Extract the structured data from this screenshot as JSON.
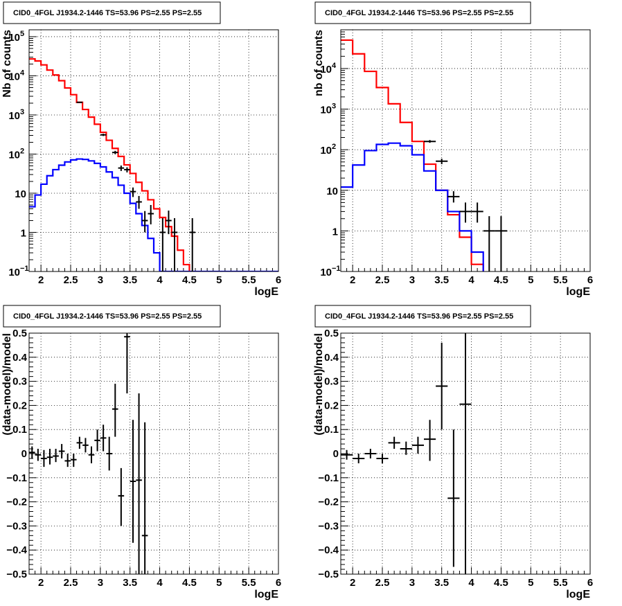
{
  "chart_data": [
    {
      "type": "line",
      "title": "CID0_4FGL J1934.2-1446 TS=53.96 PS=2.55 PS=2.55",
      "xlabel": "logE",
      "ylabel": "Nb of counts",
      "xlim": [
        1.8,
        6.0
      ],
      "ylim": [
        0.1,
        150000
      ],
      "yscale": "log",
      "grid": true,
      "x_ticks": [
        {
          "v": 2,
          "label": "2"
        },
        {
          "v": 2.5,
          "label": "2.5"
        },
        {
          "v": 3,
          "label": "3"
        },
        {
          "v": 3.5,
          "label": "3.5"
        },
        {
          "v": 4,
          "label": "4"
        },
        {
          "v": 4.5,
          "label": "4.5"
        },
        {
          "v": 5,
          "label": "5"
        },
        {
          "v": 5.5,
          "label": "5.5"
        },
        {
          "v": 6,
          "label": "6"
        }
      ],
      "y_ticks": [
        {
          "v": 0.1,
          "base": "10",
          "exp": "−1"
        },
        {
          "v": 1,
          "base": "1",
          "exp": ""
        },
        {
          "v": 10,
          "base": "10",
          "exp": ""
        },
        {
          "v": 100,
          "base": "10",
          "exp": "2"
        },
        {
          "v": 1000,
          "base": "10",
          "exp": "3"
        },
        {
          "v": 10000,
          "base": "10",
          "exp": "4"
        },
        {
          "v": 100000,
          "base": "10",
          "exp": "5"
        }
      ],
      "series": [
        {
          "style": "hist",
          "color": "#ff0000",
          "bins": {
            "start": 1.8,
            "width": 0.1,
            "values": [
              27000,
              24000,
              19000,
              14000,
              10500,
              7500,
              4900,
              3300,
              2100,
              1380,
              880,
              580,
              360,
              225,
              140,
              87,
              53,
              32,
              19,
              11.5,
              6.8,
              4.0,
              2.4,
              1.4,
              0.8,
              0.35,
              0.15,
              0.05,
              0.05,
              0.05,
              0.05,
              0.05,
              0.05,
              0.05,
              0.05,
              0.05,
              0.05,
              0.05,
              0.05,
              0.05,
              0.05,
              0.05
            ]
          }
        },
        {
          "style": "hist",
          "color": "#0000ff",
          "bins": {
            "start": 1.8,
            "width": 0.1,
            "values": [
              4.5,
              9,
              17,
              28,
              40,
              52,
              63,
              71,
              75,
              73,
              67,
              58,
              47,
              35,
              25,
              16,
              10,
              5.5,
              3.0,
              1.5,
              0.7,
              0.3,
              0.1,
              0.1,
              0.1,
              0.1,
              0.1,
              0.1,
              0.1,
              0.1,
              0.1,
              0.1,
              0.1,
              0.1,
              0.1,
              0.1,
              0.1,
              0.1,
              0.1,
              0.1,
              0.1,
              0.1
            ]
          }
        },
        {
          "style": "errorbar",
          "color": "#000000",
          "halfwidth": 0.05,
          "points": [
            [
              2.65,
              2100,
              2050,
              2150
            ],
            [
              3.05,
              310,
              290,
              330
            ],
            [
              3.25,
              110,
              100,
              121
            ],
            [
              3.35,
              44,
              37,
              51
            ],
            [
              3.45,
              40,
              34,
              46
            ],
            [
              3.55,
              11,
              8,
              14
            ],
            [
              3.65,
              6,
              4,
              8.5
            ],
            [
              3.75,
              2,
              1,
              3.5
            ],
            [
              3.85,
              3,
              1.6,
              5
            ],
            [
              4.05,
              1,
              0.1,
              2.3
            ],
            [
              4.15,
              2,
              0.9,
              3.6
            ],
            [
              4.25,
              1,
              0.1,
              2.3
            ],
            [
              4.55,
              1,
              0.1,
              2.3
            ]
          ]
        }
      ]
    },
    {
      "type": "line",
      "title": "CID0_4FGL J1934.2-1446 TS=53.96 PS=2.55 PS=2.55",
      "xlabel": "logE",
      "ylabel": "nb of counts",
      "xlim": [
        1.8,
        6.0
      ],
      "ylim": [
        0.1,
        90000
      ],
      "yscale": "log",
      "grid": true,
      "x_ticks": [
        {
          "v": 2,
          "label": "2"
        },
        {
          "v": 2.5,
          "label": "2.5"
        },
        {
          "v": 3,
          "label": "3"
        },
        {
          "v": 3.5,
          "label": "3.5"
        },
        {
          "v": 4,
          "label": "4"
        },
        {
          "v": 4.5,
          "label": "4.5"
        },
        {
          "v": 5,
          "label": "5"
        },
        {
          "v": 5.5,
          "label": "5.5"
        },
        {
          "v": 6,
          "label": "6"
        }
      ],
      "y_ticks": [
        {
          "v": 0.1,
          "base": "10",
          "exp": "−1"
        },
        {
          "v": 1,
          "base": "1",
          "exp": ""
        },
        {
          "v": 10,
          "base": "10",
          "exp": ""
        },
        {
          "v": 100,
          "base": "10",
          "exp": "2"
        },
        {
          "v": 1000,
          "base": "10",
          "exp": "3"
        },
        {
          "v": 10000,
          "base": "10",
          "exp": "4"
        }
      ],
      "series": [
        {
          "style": "hist",
          "color": "#ff0000",
          "bins": {
            "start": 1.8,
            "width": 0.2,
            "values": [
              50000,
              23000,
              8500,
              3400,
              1350,
              470,
              160,
              44,
              10,
              2.5,
              0.7,
              0.15,
              0.05,
              0.05,
              0.05,
              0.05,
              0.05,
              0.05,
              0.05,
              0.05,
              0.05
            ]
          }
        },
        {
          "style": "hist",
          "color": "#0000ff",
          "bins": {
            "start": 1.8,
            "width": 0.2,
            "values": [
              12,
              42,
              95,
              135,
              145,
              125,
              75,
              30,
              10,
              3,
              1,
              0.3,
              0.05,
              0.05,
              0.05,
              0.05,
              0.05,
              0.05,
              0.05,
              0.05,
              0.05
            ]
          }
        },
        {
          "style": "errorbar",
          "color": "#000000",
          "halfwidth": 0.1,
          "points": [
            [
              3.3,
              160,
              148,
              173
            ],
            [
              3.5,
              52,
              44,
              60
            ],
            [
              3.7,
              7,
              5,
              9.5
            ],
            [
              3.9,
              3,
              1.6,
              5
            ],
            [
              4.1,
              3,
              1.6,
              5
            ],
            [
              4.3,
              1,
              0.1,
              2.3
            ],
            [
              4.5,
              1,
              0.1,
              2.3
            ]
          ]
        }
      ]
    },
    {
      "type": "scatter",
      "title": "CID0_4FGL J1934.2-1446 TS=53.96 PS=2.55 PS=2.55",
      "xlabel": "logE",
      "ylabel": "(data-model)/model",
      "xlim": [
        1.8,
        6.0
      ],
      "ylim": [
        -0.5,
        0.5
      ],
      "yscale": "linear",
      "grid": true,
      "x_ticks": [
        {
          "v": 2,
          "label": "2"
        },
        {
          "v": 2.5,
          "label": "2.5"
        },
        {
          "v": 3,
          "label": "3"
        },
        {
          "v": 3.5,
          "label": "3.5"
        },
        {
          "v": 4,
          "label": "4"
        },
        {
          "v": 4.5,
          "label": "4.5"
        },
        {
          "v": 5,
          "label": "5"
        },
        {
          "v": 5.5,
          "label": "5.5"
        },
        {
          "v": 6,
          "label": "6"
        }
      ],
      "y_ticks": [
        {
          "v": -0.5,
          "label": "−0.5"
        },
        {
          "v": -0.4,
          "label": "−0.4"
        },
        {
          "v": -0.3,
          "label": "−0.3"
        },
        {
          "v": -0.2,
          "label": "−0.2"
        },
        {
          "v": -0.1,
          "label": "−0.1"
        },
        {
          "v": 0,
          "label": "0"
        },
        {
          "v": 0.1,
          "label": "0.1"
        },
        {
          "v": 0.2,
          "label": "0.2"
        },
        {
          "v": 0.3,
          "label": "0.3"
        },
        {
          "v": 0.4,
          "label": "0.4"
        },
        {
          "v": 0.5,
          "label": "0.5"
        }
      ],
      "series": [
        {
          "style": "errorbar",
          "color": "#000000",
          "halfwidth": 0.05,
          "points": [
            [
              1.85,
              0.005,
              -0.02,
              0.03
            ],
            [
              1.95,
              -0.005,
              -0.03,
              0.02
            ],
            [
              2.05,
              -0.02,
              -0.055,
              0.015
            ],
            [
              2.15,
              -0.015,
              -0.045,
              0.02
            ],
            [
              2.25,
              -0.01,
              -0.035,
              0.02
            ],
            [
              2.35,
              0.01,
              -0.02,
              0.04
            ],
            [
              2.45,
              -0.03,
              -0.055,
              0.0
            ],
            [
              2.55,
              -0.025,
              -0.055,
              0.0
            ],
            [
              2.65,
              0.045,
              0.02,
              0.07
            ],
            [
              2.75,
              0.035,
              0.005,
              0.065
            ],
            [
              2.85,
              -0.005,
              -0.04,
              0.03
            ],
            [
              2.95,
              0.055,
              0.01,
              0.1
            ],
            [
              3.05,
              0.065,
              0.01,
              0.12
            ],
            [
              3.15,
              0.0,
              -0.07,
              0.07
            ],
            [
              3.25,
              0.185,
              0.07,
              0.29
            ],
            [
              3.35,
              -0.175,
              -0.3,
              -0.06
            ],
            [
              3.45,
              0.485,
              0.25,
              0.5
            ],
            [
              3.55,
              -0.115,
              -0.37,
              0.14
            ],
            [
              3.65,
              -0.11,
              -0.5,
              0.25
            ],
            [
              3.75,
              -0.34,
              -0.5,
              0.13
            ]
          ]
        }
      ]
    },
    {
      "type": "scatter",
      "title": "CID0_4FGL J1934.2-1446 TS=53.96 PS=2.55 PS=2.55",
      "xlabel": "logE",
      "ylabel": "(data-model)/model",
      "xlim": [
        1.8,
        6.0
      ],
      "ylim": [
        -0.5,
        0.5
      ],
      "yscale": "linear",
      "grid": true,
      "x_ticks": [
        {
          "v": 2,
          "label": "2"
        },
        {
          "v": 2.5,
          "label": "2.5"
        },
        {
          "v": 3,
          "label": "3"
        },
        {
          "v": 3.5,
          "label": "3.5"
        },
        {
          "v": 4,
          "label": "4"
        },
        {
          "v": 4.5,
          "label": "4.5"
        },
        {
          "v": 5,
          "label": "5"
        },
        {
          "v": 5.5,
          "label": "5.5"
        },
        {
          "v": 6,
          "label": "6"
        }
      ],
      "y_ticks": [
        {
          "v": -0.5,
          "label": "−0.5"
        },
        {
          "v": -0.4,
          "label": "−0.4"
        },
        {
          "v": -0.3,
          "label": "−0.3"
        },
        {
          "v": -0.2,
          "label": "−0.2"
        },
        {
          "v": -0.1,
          "label": "−0.1"
        },
        {
          "v": 0,
          "label": "0"
        },
        {
          "v": 0.1,
          "label": "0.1"
        },
        {
          "v": 0.2,
          "label": "0.2"
        },
        {
          "v": 0.3,
          "label": "0.3"
        },
        {
          "v": 0.4,
          "label": "0.4"
        },
        {
          "v": 0.5,
          "label": "0.5"
        }
      ],
      "series": [
        {
          "style": "errorbar",
          "color": "#000000",
          "halfwidth": 0.1,
          "points": [
            [
              1.9,
              -0.005,
              -0.025,
              0.015
            ],
            [
              2.1,
              -0.02,
              -0.04,
              0.0
            ],
            [
              2.3,
              0.0,
              -0.02,
              0.02
            ],
            [
              2.5,
              -0.02,
              -0.04,
              0.0
            ],
            [
              2.7,
              0.045,
              0.02,
              0.07
            ],
            [
              2.9,
              0.02,
              -0.005,
              0.05
            ],
            [
              3.1,
              0.035,
              0.0,
              0.07
            ],
            [
              3.3,
              0.06,
              -0.03,
              0.14
            ],
            [
              3.5,
              0.28,
              0.1,
              0.46
            ],
            [
              3.7,
              -0.185,
              -0.47,
              0.1
            ],
            [
              3.9,
              0.205,
              -0.5,
              0.5
            ]
          ]
        }
      ]
    }
  ]
}
